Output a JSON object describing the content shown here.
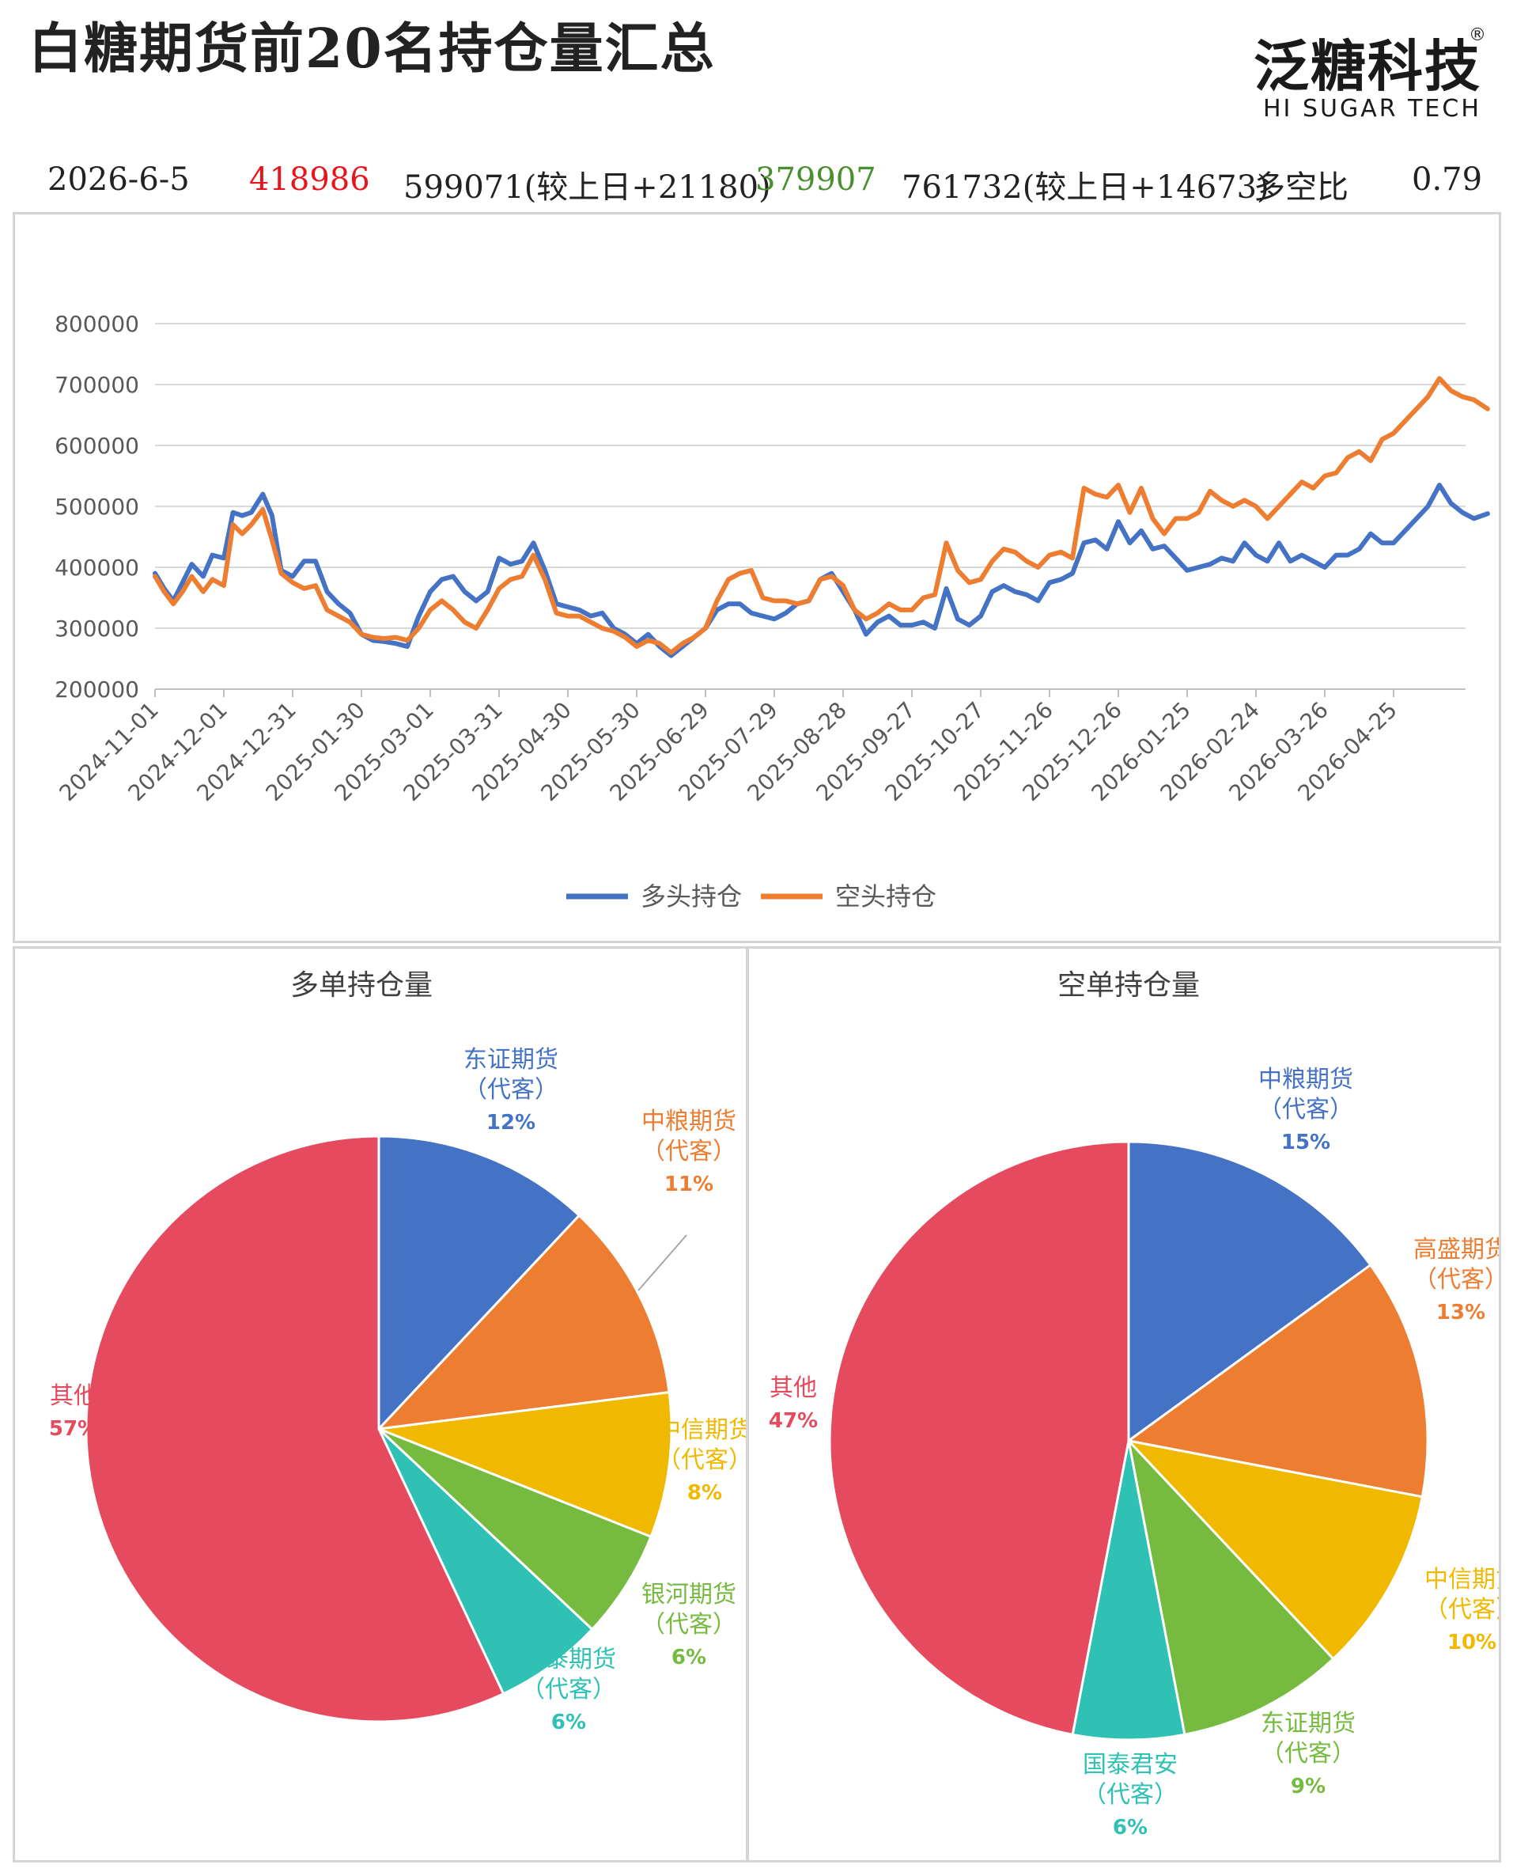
{
  "header": {
    "title": "白糖期货前20名持仓量汇总",
    "logo_cn": "泛糖科技",
    "logo_reg": "®",
    "logo_en": "HI SUGAR TECH"
  },
  "stats": {
    "date": "2026-6-5",
    "long_net": "418986",
    "long_total": "599071(较上日+21180)",
    "short_net": "379907",
    "short_total": "761732(较上日+14673)",
    "ratio_label": "多空比",
    "ratio_value": "0.79"
  },
  "colors": {
    "long_net": "#e8141c",
    "short_net": "#4a8f2e",
    "series_long": "#4472c4",
    "series_short": "#ed7d31"
  },
  "chart_data": [
    {
      "type": "line",
      "title": "",
      "xlabel": "",
      "ylabel": "",
      "ylim": [
        200000,
        800000
      ],
      "yticks": [
        "800000",
        "700000",
        "600000",
        "500000",
        "400000",
        "300000",
        "200000"
      ],
      "categories": [
        "2024-11-01",
        "2024-12-01",
        "2024-12-31",
        "2025-01-30",
        "2025-03-01",
        "2025-03-31",
        "2025-04-30",
        "2025-05-30",
        "2025-06-29",
        "2025-07-29",
        "2025-08-28",
        "2025-09-27",
        "2025-10-27",
        "2025-11-26",
        "2025-12-26",
        "2026-01-25",
        "2026-02-24",
        "2026-03-26",
        "2026-04-25"
      ],
      "grid": true,
      "legend": "bottom",
      "series": [
        {
          "name": "多头持仓",
          "color": "#4472c4",
          "x": [
            "2024-11-01",
            "2024-11-05",
            "2024-11-09",
            "2024-11-13",
            "2024-11-17",
            "2024-11-22",
            "2024-11-26",
            "2024-12-01",
            "2024-12-05",
            "2024-12-09",
            "2024-12-13",
            "2024-12-18",
            "2024-12-22",
            "2024-12-26",
            "2024-12-31",
            "2025-01-05",
            "2025-01-10",
            "2025-01-15",
            "2025-01-20",
            "2025-01-25",
            "2025-01-30",
            "2025-02-04",
            "2025-02-09",
            "2025-02-14",
            "2025-02-19",
            "2025-02-24",
            "2025-03-01",
            "2025-03-06",
            "2025-03-11",
            "2025-03-16",
            "2025-03-21",
            "2025-03-26",
            "2025-03-31",
            "2025-04-05",
            "2025-04-10",
            "2025-04-15",
            "2025-04-20",
            "2025-04-25",
            "2025-04-30",
            "2025-05-05",
            "2025-05-10",
            "2025-05-15",
            "2025-05-20",
            "2025-05-25",
            "2025-05-30",
            "2025-06-04",
            "2025-06-09",
            "2025-06-14",
            "2025-06-19",
            "2025-06-24",
            "2025-06-29",
            "2025-07-04",
            "2025-07-09",
            "2025-07-14",
            "2025-07-19",
            "2025-07-24",
            "2025-07-29",
            "2025-08-03",
            "2025-08-08",
            "2025-08-13",
            "2025-08-18",
            "2025-08-23",
            "2025-08-28",
            "2025-09-02",
            "2025-09-07",
            "2025-09-12",
            "2025-09-17",
            "2025-09-22",
            "2025-09-27",
            "2025-10-02",
            "2025-10-07",
            "2025-10-12",
            "2025-10-17",
            "2025-10-22",
            "2025-10-27",
            "2025-11-01",
            "2025-11-06",
            "2025-11-11",
            "2025-11-16",
            "2025-11-21",
            "2025-11-26",
            "2025-12-01",
            "2025-12-06",
            "2025-12-11",
            "2025-12-16",
            "2025-12-21",
            "2025-12-26",
            "2025-12-31",
            "2026-01-05",
            "2026-01-10",
            "2026-01-15",
            "2026-01-20",
            "2026-01-25",
            "2026-01-30",
            "2026-02-04",
            "2026-02-09",
            "2026-02-14",
            "2026-02-19",
            "2026-02-24",
            "2026-03-01",
            "2026-03-06",
            "2026-03-11",
            "2026-03-16",
            "2026-03-21",
            "2026-03-26",
            "2026-03-31",
            "2026-04-05",
            "2026-04-10",
            "2026-04-15",
            "2026-04-20",
            "2026-04-25",
            "2026-04-30",
            "2026-05-05",
            "2026-05-10",
            "2026-05-15",
            "2026-05-20",
            "2026-05-25",
            "2026-05-30",
            "2026-06-05"
          ],
          "values": [
            390000,
            365000,
            345000,
            375000,
            405000,
            385000,
            420000,
            415000,
            490000,
            485000,
            490000,
            520000,
            485000,
            395000,
            385000,
            410000,
            410000,
            360000,
            340000,
            325000,
            290000,
            280000,
            278000,
            275000,
            270000,
            320000,
            360000,
            380000,
            385000,
            360000,
            345000,
            360000,
            415000,
            405000,
            410000,
            440000,
            395000,
            340000,
            335000,
            330000,
            320000,
            325000,
            300000,
            290000,
            275000,
            290000,
            270000,
            255000,
            270000,
            285000,
            300000,
            330000,
            340000,
            340000,
            325000,
            320000,
            315000,
            325000,
            340000,
            345000,
            380000,
            390000,
            360000,
            330000,
            290000,
            310000,
            320000,
            305000,
            305000,
            310000,
            300000,
            365000,
            315000,
            305000,
            320000,
            360000,
            370000,
            360000,
            355000,
            345000,
            375000,
            380000,
            390000,
            440000,
            445000,
            430000,
            475000,
            440000,
            460000,
            430000,
            435000,
            415000,
            395000,
            400000,
            405000,
            415000,
            410000,
            440000,
            420000,
            410000,
            440000,
            410000,
            420000,
            410000,
            400000,
            420000,
            420000,
            430000,
            455000,
            440000,
            440000,
            460000,
            480000,
            500000,
            535000,
            505000,
            490000,
            480000,
            488000
          ]
        },
        {
          "name": "空头持仓",
          "color": "#ed7d31",
          "x": [
            "2024-11-01",
            "2024-11-05",
            "2024-11-09",
            "2024-11-13",
            "2024-11-17",
            "2024-11-22",
            "2024-11-26",
            "2024-12-01",
            "2024-12-05",
            "2024-12-09",
            "2024-12-13",
            "2024-12-18",
            "2024-12-22",
            "2024-12-26",
            "2024-12-31",
            "2025-01-05",
            "2025-01-10",
            "2025-01-15",
            "2025-01-20",
            "2025-01-25",
            "2025-01-30",
            "2025-02-04",
            "2025-02-09",
            "2025-02-14",
            "2025-02-19",
            "2025-02-24",
            "2025-03-01",
            "2025-03-06",
            "2025-03-11",
            "2025-03-16",
            "2025-03-21",
            "2025-03-26",
            "2025-03-31",
            "2025-04-05",
            "2025-04-10",
            "2025-04-15",
            "2025-04-20",
            "2025-04-25",
            "2025-04-30",
            "2025-05-05",
            "2025-05-10",
            "2025-05-15",
            "2025-05-20",
            "2025-05-25",
            "2025-05-30",
            "2025-06-04",
            "2025-06-09",
            "2025-06-14",
            "2025-06-19",
            "2025-06-24",
            "2025-06-29",
            "2025-07-04",
            "2025-07-09",
            "2025-07-14",
            "2025-07-19",
            "2025-07-24",
            "2025-07-29",
            "2025-08-03",
            "2025-08-08",
            "2025-08-13",
            "2025-08-18",
            "2025-08-23",
            "2025-08-28",
            "2025-09-02",
            "2025-09-07",
            "2025-09-12",
            "2025-09-17",
            "2025-09-22",
            "2025-09-27",
            "2025-10-02",
            "2025-10-07",
            "2025-10-12",
            "2025-10-17",
            "2025-10-22",
            "2025-10-27",
            "2025-11-01",
            "2025-11-06",
            "2025-11-11",
            "2025-11-16",
            "2025-11-21",
            "2025-11-26",
            "2025-12-01",
            "2025-12-06",
            "2025-12-11",
            "2025-12-16",
            "2025-12-21",
            "2025-12-26",
            "2025-12-31",
            "2026-01-05",
            "2026-01-10",
            "2026-01-15",
            "2026-01-20",
            "2026-01-25",
            "2026-01-30",
            "2026-02-04",
            "2026-02-09",
            "2026-02-14",
            "2026-02-19",
            "2026-02-24",
            "2026-03-01",
            "2026-03-06",
            "2026-03-11",
            "2026-03-16",
            "2026-03-21",
            "2026-03-26",
            "2026-03-31",
            "2026-04-05",
            "2026-04-10",
            "2026-04-15",
            "2026-04-20",
            "2026-04-25",
            "2026-04-30",
            "2026-05-05",
            "2026-05-10",
            "2026-05-15",
            "2026-05-20",
            "2026-05-25",
            "2026-05-30",
            "2026-06-05"
          ],
          "values": [
            385000,
            360000,
            340000,
            360000,
            385000,
            360000,
            380000,
            370000,
            470000,
            455000,
            470000,
            495000,
            445000,
            390000,
            375000,
            365000,
            370000,
            330000,
            320000,
            310000,
            290000,
            285000,
            283000,
            285000,
            280000,
            300000,
            330000,
            345000,
            330000,
            310000,
            300000,
            330000,
            365000,
            380000,
            385000,
            420000,
            380000,
            325000,
            320000,
            320000,
            310000,
            300000,
            295000,
            285000,
            270000,
            280000,
            275000,
            260000,
            275000,
            285000,
            300000,
            345000,
            380000,
            390000,
            395000,
            350000,
            345000,
            345000,
            340000,
            345000,
            380000,
            385000,
            370000,
            330000,
            315000,
            325000,
            340000,
            330000,
            330000,
            350000,
            355000,
            440000,
            395000,
            375000,
            380000,
            410000,
            430000,
            425000,
            410000,
            400000,
            420000,
            425000,
            415000,
            530000,
            520000,
            515000,
            535000,
            490000,
            530000,
            480000,
            455000,
            480000,
            480000,
            490000,
            525000,
            510000,
            500000,
            510000,
            500000,
            480000,
            500000,
            520000,
            540000,
            530000,
            550000,
            555000,
            580000,
            590000,
            575000,
            610000,
            620000,
            640000,
            660000,
            680000,
            710000,
            690000,
            680000,
            675000,
            660000
          ]
        }
      ]
    },
    {
      "type": "pie",
      "title": "多单持仓量",
      "slices": [
        {
          "name": "东证期货",
          "sub": "（代客）",
          "value": 12,
          "label": "12%",
          "color": "#4472c4"
        },
        {
          "name": "中粮期货",
          "sub": "（代客）",
          "value": 11,
          "label": "11%",
          "color": "#ed7d31"
        },
        {
          "name": "中信期货",
          "sub": "（代客）",
          "value": 8,
          "label": "8%",
          "color": "#f1b800"
        },
        {
          "name": "银河期货",
          "sub": "（代客）",
          "value": 6,
          "label": "6%",
          "color": "#76bb40"
        },
        {
          "name": "华泰期货",
          "sub": "（代客）",
          "value": 6,
          "label": "6%",
          "color": "#2ec1b4"
        },
        {
          "name": "其他",
          "sub": "",
          "value": 57,
          "label": "57%",
          "color": "#e64a5e"
        }
      ]
    },
    {
      "type": "pie",
      "title": "空单持仓量",
      "slices": [
        {
          "name": "中粮期货",
          "sub": "（代客）",
          "value": 15,
          "label": "15%",
          "color": "#4472c4"
        },
        {
          "name": "高盛期货",
          "sub": "（代客）",
          "value": 13,
          "label": "13%",
          "color": "#ed7d31"
        },
        {
          "name": "中信期货",
          "sub": "（代客）",
          "value": 10,
          "label": "10%",
          "color": "#f1b800"
        },
        {
          "name": "东证期货",
          "sub": "（代客）",
          "value": 9,
          "label": "9%",
          "color": "#76bb40"
        },
        {
          "name": "国泰君安",
          "sub": "（代客）",
          "value": 6,
          "label": "6%",
          "color": "#2ec1b4"
        },
        {
          "name": "其他",
          "sub": "",
          "value": 47,
          "label": "47%",
          "color": "#e64a5e"
        }
      ]
    }
  ]
}
